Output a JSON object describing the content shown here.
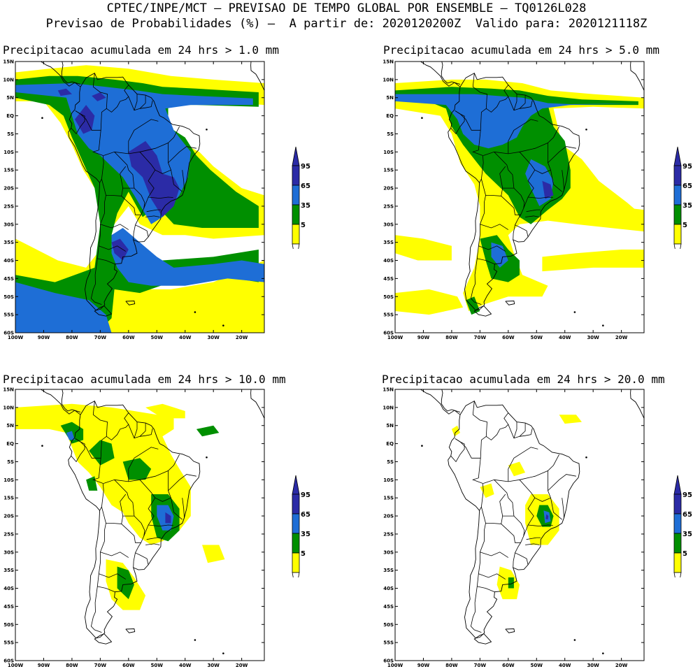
{
  "header": {
    "line1": "CPTEC/INPE/MCT — PREVISAO DE TEMPO GLOBAL POR ENSEMBLE — TQ0126L028",
    "line2": "Previsao de Probabilidades (%) —  A partir de: 2020120200Z  Valido para: 2020121118Z"
  },
  "colors": {
    "c5": "#ffff00",
    "c35": "#008f00",
    "c65": "#1e6ed6",
    "c95": "#2b2ba6",
    "coast": "#000000"
  },
  "lat_labels": [
    "15N",
    "10N",
    "5N",
    "EQ",
    "5S",
    "10S",
    "15S",
    "20S",
    "25S",
    "30S",
    "35S",
    "40S",
    "45S",
    "50S",
    "55S",
    "60S"
  ],
  "lon_labels": [
    "100W",
    "90W",
    "80W",
    "70W",
    "60W",
    "50W",
    "40W",
    "30W",
    "20W"
  ],
  "colorbar_labels": [
    "95",
    "65",
    "35",
    "5"
  ],
  "panels": [
    {
      "title": "Precipitacao acumulada em 24 hrs > 1.0 mm"
    },
    {
      "title": "Precipitacao acumulada em 24 hrs > 5.0 mm"
    },
    {
      "title": "Precipitacao acumulada em 24 hrs > 10.0 mm"
    },
    {
      "title": "Precipitacao acumulada em 24 hrs > 20.0 mm"
    }
  ]
}
